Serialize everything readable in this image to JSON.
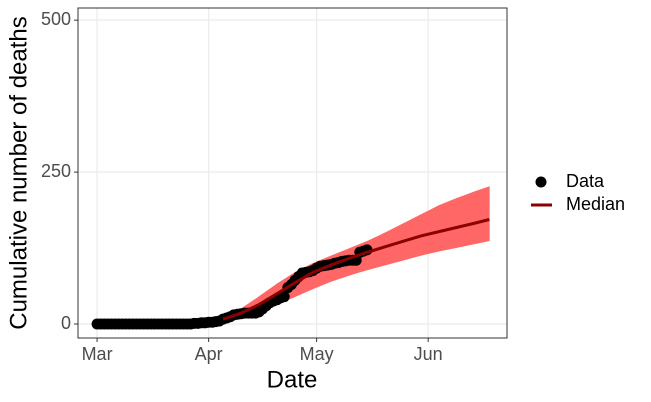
{
  "chart_data": {
    "type": "line",
    "xlabel": "Date",
    "ylabel": "Cumulative number of deaths",
    "xlim": [
      -5.3,
      113.9
    ],
    "ylim": [
      -23,
      520
    ],
    "xticks": [
      {
        "value": 0,
        "label": "Mar"
      },
      {
        "value": 31,
        "label": "Apr"
      },
      {
        "value": 61,
        "label": "May"
      },
      {
        "value": 92,
        "label": "Jun"
      }
    ],
    "yticks": [
      0,
      250,
      500
    ],
    "grid": true,
    "legend": "right",
    "band_color": "#ff6666",
    "series": [
      {
        "name": "Data",
        "color": "#000000",
        "style": "points",
        "x": [
          0,
          1,
          2,
          3,
          4,
          5,
          6,
          7,
          8,
          9,
          10,
          11,
          12,
          13,
          14,
          15,
          16,
          17,
          18,
          19,
          20,
          21,
          22,
          23,
          24,
          25,
          26,
          27,
          28,
          29,
          30,
          31,
          32,
          33,
          34,
          35,
          36,
          37,
          38,
          39,
          40,
          41,
          42,
          43,
          44,
          45,
          46,
          47,
          48,
          49,
          50,
          51,
          52,
          53,
          54,
          55,
          56,
          57,
          58,
          59,
          60,
          61,
          62,
          63,
          64,
          65,
          66,
          67,
          68,
          69,
          70,
          71,
          72,
          73,
          74,
          75
        ],
        "values": [
          0,
          0,
          0,
          0,
          0,
          0,
          0,
          0,
          0,
          0,
          0,
          0,
          0,
          0,
          0,
          0,
          0,
          0,
          0,
          0,
          0,
          0,
          0,
          0,
          0,
          0,
          0,
          1,
          1,
          2,
          2,
          3,
          3,
          4,
          5,
          8,
          10,
          12,
          15,
          16,
          17,
          18,
          18,
          18,
          18,
          20,
          25,
          30,
          35,
          38,
          40,
          43,
          45,
          60,
          65,
          72,
          78,
          84,
          85,
          86,
          88,
          92,
          95,
          96,
          97,
          98,
          100,
          101,
          103,
          104,
          105,
          105,
          105,
          118,
          120,
          122
        ]
      },
      {
        "name": "Median",
        "color": "#8b0000",
        "style": "line",
        "x": [
          35,
          40,
          45,
          50,
          55,
          60,
          65,
          70,
          75,
          80,
          85,
          90,
          95,
          100,
          105,
          109
        ],
        "values": [
          8,
          18,
          32,
          50,
          68,
          85,
          97,
          108,
          118,
          127,
          136,
          145,
          152,
          159,
          166,
          172
        ],
        "lower": [
          4,
          10,
          20,
          32,
          45,
          58,
          70,
          80,
          89,
          97,
          105,
          113,
          120,
          126,
          132,
          137
        ],
        "upper": [
          12,
          25,
          45,
          66,
          85,
          100,
          112,
          124,
          136,
          150,
          165,
          180,
          195,
          207,
          218,
          226
        ]
      }
    ]
  }
}
